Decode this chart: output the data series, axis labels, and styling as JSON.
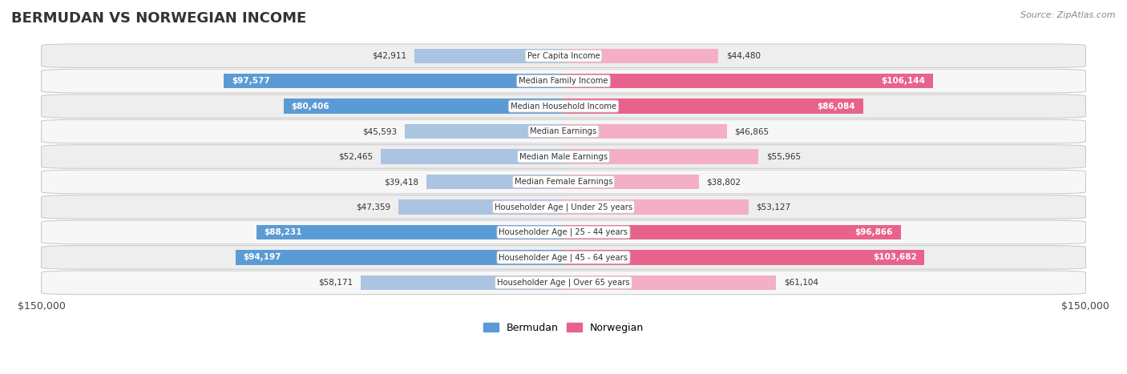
{
  "title": "BERMUDAN VS NORWEGIAN INCOME",
  "source": "Source: ZipAtlas.com",
  "categories": [
    "Per Capita Income",
    "Median Family Income",
    "Median Household Income",
    "Median Earnings",
    "Median Male Earnings",
    "Median Female Earnings",
    "Householder Age | Under 25 years",
    "Householder Age | 25 - 44 years",
    "Householder Age | 45 - 64 years",
    "Householder Age | Over 65 years"
  ],
  "bermudan_values": [
    42911,
    97577,
    80406,
    45593,
    52465,
    39418,
    47359,
    88231,
    94197,
    58171
  ],
  "norwegian_values": [
    44480,
    106144,
    86084,
    46865,
    55965,
    38802,
    53127,
    96866,
    103682,
    61104
  ],
  "max_value": 150000,
  "bermudan_color_light": "#aac4e2",
  "bermudan_color_dark": "#5b9bd5",
  "norwegian_color_light": "#f4aec8",
  "norwegian_color_dark": "#e8638c",
  "bar_height": 0.58,
  "row_bg_even": "#eeeeee",
  "row_bg_odd": "#f7f7f7",
  "label_dark": "#333333",
  "label_white": "#ffffff",
  "legend_bermudan": "Bermudan",
  "legend_norwegian": "Norwegian",
  "axis_label": "$150,000",
  "inside_threshold": 0.5
}
